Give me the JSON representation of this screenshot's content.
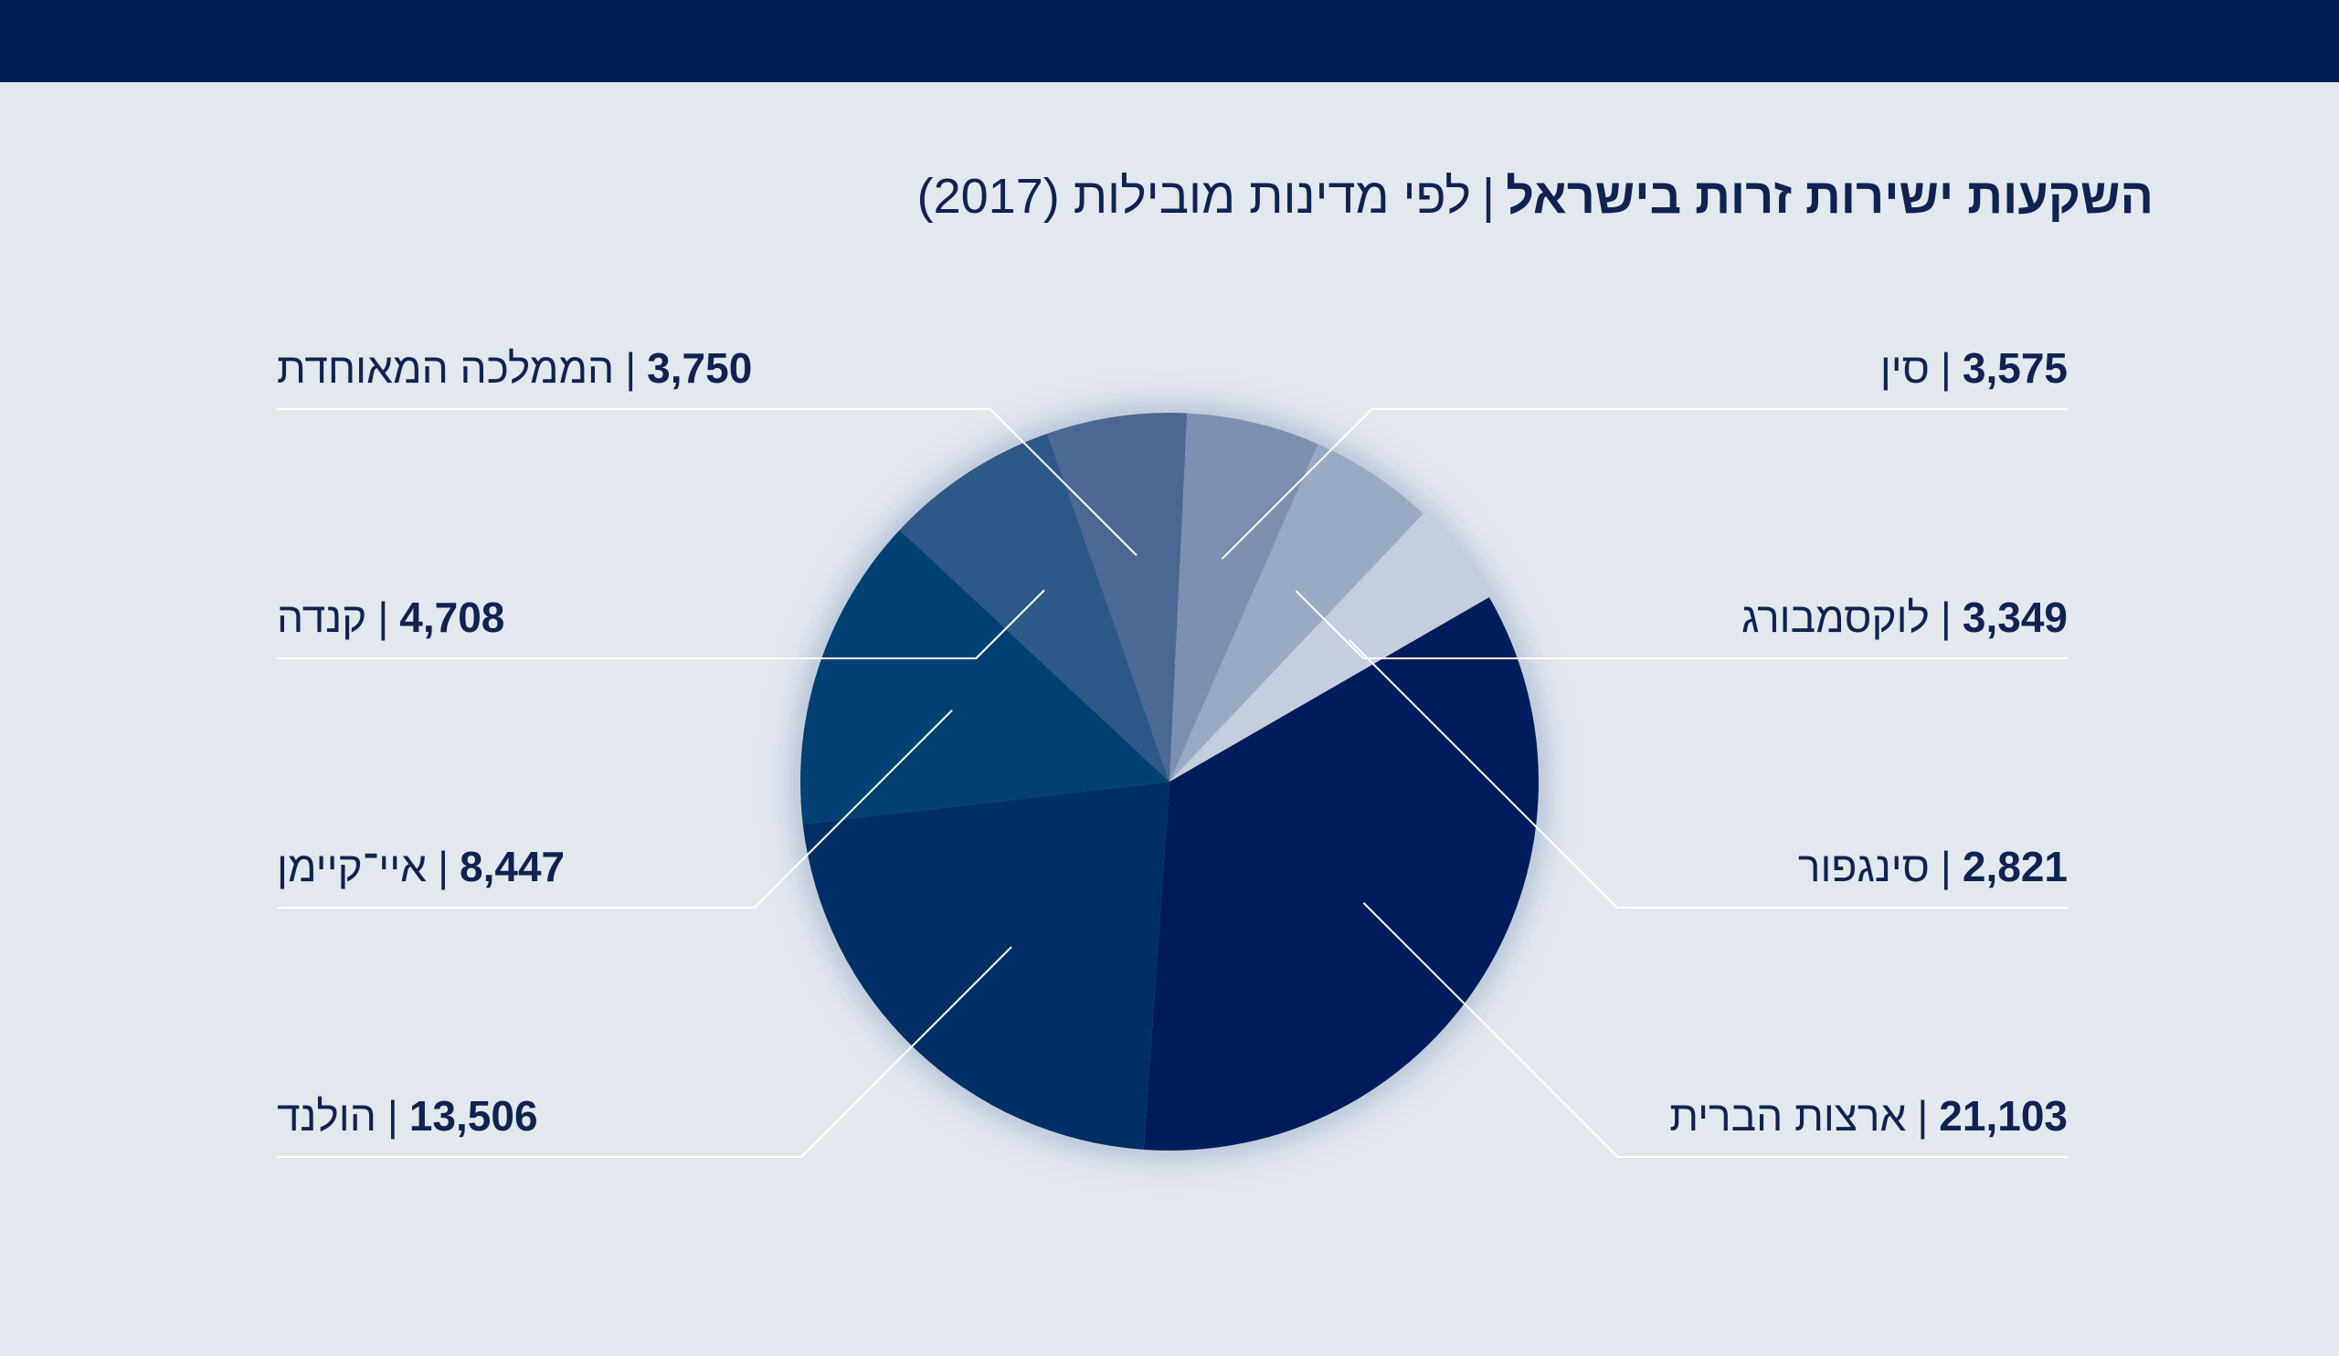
{
  "header": {
    "bar_color": "#001f5b"
  },
  "title": {
    "main": "השקעות ישירות זרות בישראל",
    "separator": "|",
    "subtitle": "לפי מדינות מובילות (2017)"
  },
  "chart_data": {
    "type": "pie",
    "title": "השקעות ישירות זרות בישראל | לפי מדינות מובילות (2017)",
    "start_angle_deg": 60,
    "direction": "clockwise",
    "slices": [
      {
        "label": "ארצות הברית",
        "value": 21103,
        "display": "21,103",
        "color": "#001f5b"
      },
      {
        "label": "הולנד",
        "value": 13506,
        "display": "13,506",
        "color": "#002e66"
      },
      {
        "label": "איי־קיימן",
        "value": 8447,
        "display": "8,447",
        "color": "#003f72"
      },
      {
        "label": "קנדה",
        "value": 4708,
        "display": "4,708",
        "color": "#2f5888"
      },
      {
        "label": "הממלכה המאוחדת",
        "value": 3750,
        "display": "3,750",
        "color": "#4b6893"
      },
      {
        "label": "סין",
        "value": 3575,
        "display": "3,575",
        "color": "#7b90b0"
      },
      {
        "label": "לוקסמבורג",
        "value": 3349,
        "display": "3,349",
        "color": "#9aaac4"
      },
      {
        "label": "סינגפור",
        "value": 2821,
        "display": "2,821",
        "color": "#c5cedd"
      }
    ],
    "legend_layout": "labels on both sides with leader lines"
  }
}
